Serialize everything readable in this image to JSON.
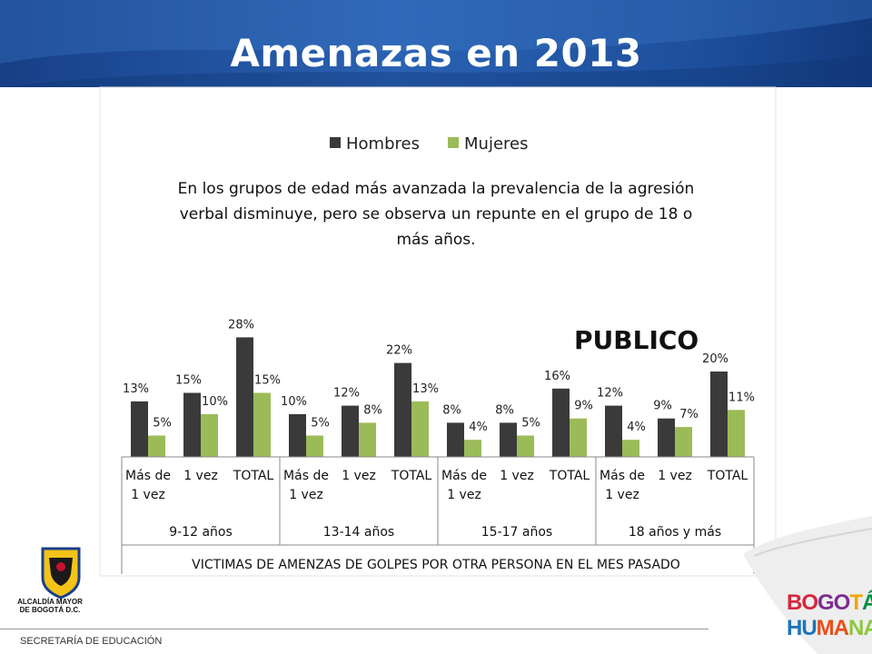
{
  "slide": {
    "title": "Amenazas en 2013",
    "annotation": "En los grupos de edad  más avanzada la prevalencia de la agresión verbal disminuye, pero se observa un repunte  en el grupo de 18 o más años.",
    "annotation_lines": [
      "En los grupos de edad  más avanzada la prevalencia de la agresión",
      "verbal disminuye, pero se observa un repunte  en el grupo de 18 o",
      "más años."
    ],
    "callout": "PUBLICO"
  },
  "footer": {
    "alcaldia_lines": [
      "ALCALDÍA MAYOR",
      "DE BOGOTÁ D.C."
    ],
    "secretaria": "SECRETARÍA DE EDUCACIÓN",
    "brand_line1": [
      "BO",
      "GO",
      "T",
      "Á"
    ],
    "brand_line2": [
      "HU",
      "MA",
      "NA"
    ]
  },
  "colors": {
    "header_blue": "#1f4f9c",
    "hombres": "#3a3a3a",
    "mujeres": "#9bbb59"
  },
  "chart_data": {
    "type": "bar",
    "x_title": "VICTIMAS DE AMENZAS DE GOLPES POR OTRA PERSONA EN EL MES PASADO",
    "legend_position": "top",
    "grid": false,
    "ylim": [
      0,
      30
    ],
    "groups": [
      "9-12 años",
      "13-14 años",
      "15-17 años",
      "18 años y más"
    ],
    "categories": [
      [
        "Más de",
        "1 vez"
      ],
      [
        "1 vez"
      ],
      [
        "TOTAL"
      ],
      [
        "Más de",
        "1 vez"
      ],
      [
        "1 vez"
      ],
      [
        "TOTAL"
      ],
      [
        "Más de",
        "1 vez"
      ],
      [
        "1 vez"
      ],
      [
        "TOTAL"
      ],
      [
        "Más de",
        "1 vez"
      ],
      [
        "1 vez"
      ],
      [
        "TOTAL"
      ]
    ],
    "series": [
      {
        "name": "Hombres",
        "values": [
          13,
          15,
          28,
          10,
          12,
          22,
          8,
          8,
          16,
          12,
          9,
          20
        ]
      },
      {
        "name": "Mujeres",
        "values": [
          5,
          10,
          15,
          5,
          8,
          13,
          4,
          5,
          9,
          4,
          7,
          11
        ]
      }
    ],
    "value_suffix": "%"
  }
}
